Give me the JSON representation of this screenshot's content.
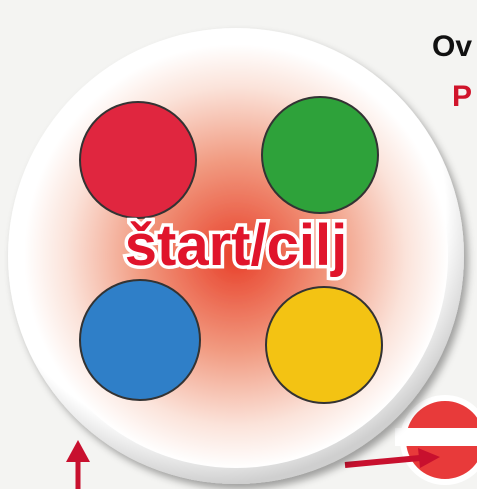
{
  "label": "štart/cilj",
  "corner_text": [
    "Ov",
    "P"
  ]
}
